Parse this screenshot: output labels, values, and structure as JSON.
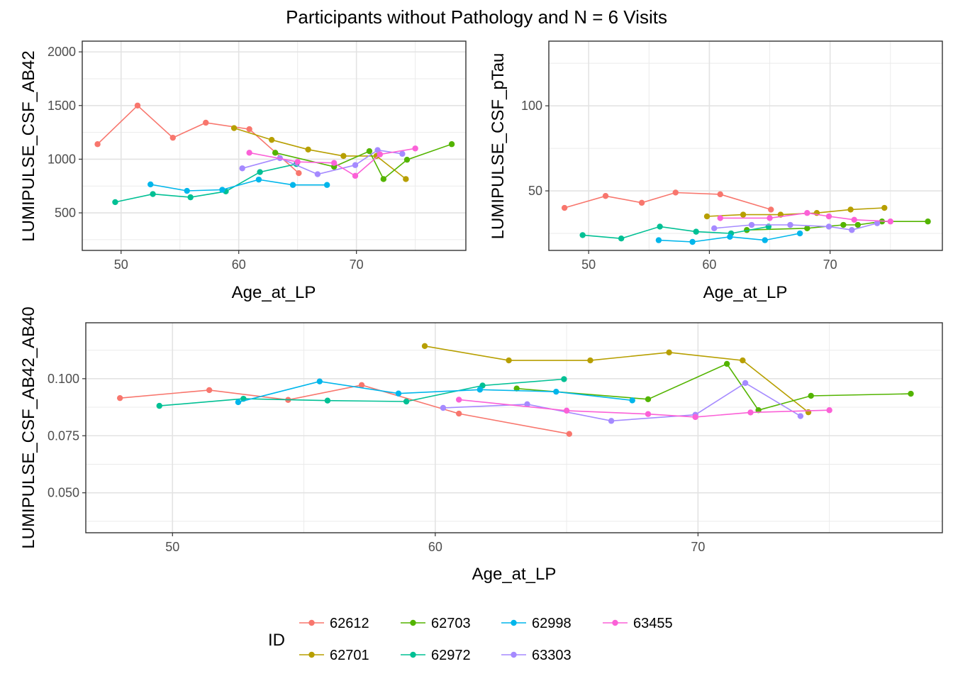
{
  "figure_title": "Participants without Pathology and N = 6 Visits",
  "colors": {
    "62612": "#F8766D",
    "62701": "#B79F00",
    "62703": "#53B400",
    "62972": "#00C094",
    "62998": "#00B6EB",
    "63303": "#A58AFF",
    "63455": "#FB61D7"
  },
  "legend": {
    "title": "ID",
    "entries": [
      "62612",
      "62703",
      "62998",
      "63455",
      "62701",
      "62972",
      "63303"
    ]
  },
  "chart_data": [
    {
      "type": "line",
      "xlabel": "Age_at_LP",
      "ylabel": "LUMIPULSE_CSF_AB42",
      "xlim": [
        46.7,
        79.3
      ],
      "ylim": [
        150,
        2100
      ],
      "xticks": [
        50,
        60,
        70
      ],
      "yticks": [
        500,
        1000,
        1500,
        2000
      ],
      "ytick_labels": [
        "500",
        "1000",
        "1500",
        "2000"
      ],
      "grid": true,
      "series": [
        {
          "name": "62612",
          "x": [
            48.0,
            51.4,
            54.4,
            57.2,
            60.9,
            65.1
          ],
          "y": [
            1140,
            1500,
            1200,
            1340,
            1280,
            870
          ]
        },
        {
          "name": "62701",
          "x": [
            59.6,
            62.8,
            65.9,
            68.9,
            71.7,
            74.2
          ],
          "y": [
            1290,
            1180,
            1090,
            1030,
            1030,
            815
          ]
        },
        {
          "name": "62703",
          "x": [
            63.1,
            68.1,
            71.1,
            72.3,
            74.3,
            78.1
          ],
          "y": [
            1060,
            930,
            1075,
            815,
            995,
            1140
          ]
        },
        {
          "name": "62972",
          "x": [
            49.5,
            52.7,
            55.9,
            58.9,
            61.8,
            64.9
          ],
          "y": [
            600,
            675,
            645,
            700,
            880,
            955
          ]
        },
        {
          "name": "62998",
          "x": [
            52.5,
            55.6,
            58.6,
            61.7,
            64.6,
            67.5
          ],
          "y": [
            765,
            705,
            715,
            810,
            760,
            760
          ]
        },
        {
          "name": "63303",
          "x": [
            60.3,
            63.5,
            66.7,
            69.9,
            71.8,
            73.9
          ],
          "y": [
            915,
            1010,
            860,
            945,
            1085,
            1050
          ]
        },
        {
          "name": "63455",
          "x": [
            60.9,
            65.0,
            68.1,
            69.9,
            72.0,
            75.0
          ],
          "y": [
            1060,
            975,
            965,
            845,
            1045,
            1100
          ]
        }
      ]
    },
    {
      "type": "line",
      "xlabel": "Age_at_LP",
      "ylabel": "LUMIPULSE_CSF_pTau",
      "xlim": [
        46.7,
        79.3
      ],
      "ylim": [
        15,
        138
      ],
      "xticks": [
        50,
        60,
        70
      ],
      "yticks": [
        50,
        100
      ],
      "ytick_labels": [
        "50",
        "100"
      ],
      "grid": true,
      "series": [
        {
          "name": "62612",
          "x": [
            48.0,
            51.4,
            54.4,
            57.2,
            60.9,
            65.1
          ],
          "y": [
            40,
            47,
            43,
            49,
            48,
            39
          ]
        },
        {
          "name": "62701",
          "x": [
            59.8,
            62.8,
            65.9,
            68.9,
            71.7,
            74.5
          ],
          "y": [
            35,
            36,
            36,
            37,
            39,
            40
          ]
        },
        {
          "name": "62703",
          "x": [
            63.1,
            68.1,
            71.1,
            72.3,
            74.3,
            78.1
          ],
          "y": [
            27,
            28,
            30,
            30,
            32,
            32
          ]
        },
        {
          "name": "62972",
          "x": [
            49.5,
            52.7,
            55.9,
            58.9,
            61.8,
            64.9
          ],
          "y": [
            24,
            22,
            29,
            26,
            25,
            29
          ]
        },
        {
          "name": "62998",
          "x": [
            55.8,
            58.6,
            61.7,
            64.6,
            67.5
          ],
          "y": [
            21,
            20,
            23,
            21,
            25
          ]
        },
        {
          "name": "63303",
          "x": [
            60.4,
            63.5,
            66.7,
            69.9,
            71.8,
            73.9
          ],
          "y": [
            28,
            30,
            30,
            29,
            27,
            31
          ]
        },
        {
          "name": "63455",
          "x": [
            60.9,
            65.0,
            68.1,
            69.9,
            72.0,
            75.0
          ],
          "y": [
            34,
            34,
            37,
            35,
            33,
            32
          ]
        }
      ]
    },
    {
      "type": "line",
      "xlabel": "Age_at_LP",
      "ylabel": "LUMIPULSE_CSF_AB42_AB40",
      "xlim": [
        46.7,
        79.3
      ],
      "ylim": [
        0.0325,
        0.1245
      ],
      "xticks": [
        50,
        60,
        70
      ],
      "yticks": [
        0.05,
        0.075,
        0.1
      ],
      "ytick_labels": [
        "0.050",
        "0.075",
        "0.100"
      ],
      "grid": true,
      "series": [
        {
          "name": "62612",
          "x": [
            48.0,
            51.4,
            54.4,
            57.2,
            60.9,
            65.1
          ],
          "y": [
            0.0915,
            0.095,
            0.0907,
            0.0972,
            0.0847,
            0.0758
          ]
        },
        {
          "name": "62701",
          "x": [
            59.6,
            62.8,
            65.9,
            68.9,
            71.7,
            74.2
          ],
          "y": [
            0.1143,
            0.108,
            0.108,
            0.1115,
            0.108,
            0.0853
          ]
        },
        {
          "name": "62703",
          "x": [
            63.1,
            68.1,
            71.1,
            72.3,
            74.3,
            78.1
          ],
          "y": [
            0.0957,
            0.091,
            0.1065,
            0.0862,
            0.0925,
            0.0934
          ]
        },
        {
          "name": "62972",
          "x": [
            49.5,
            52.7,
            55.9,
            58.9,
            61.8,
            64.9
          ],
          "y": [
            0.0881,
            0.0912,
            0.0904,
            0.09,
            0.097,
            0.0998
          ]
        },
        {
          "name": "62998",
          "x": [
            52.5,
            55.6,
            58.6,
            61.7,
            64.6,
            67.5
          ],
          "y": [
            0.0897,
            0.0988,
            0.0935,
            0.0952,
            0.0943,
            0.0905
          ]
        },
        {
          "name": "63303",
          "x": [
            60.3,
            63.5,
            66.7,
            69.9,
            71.8,
            73.9
          ],
          "y": [
            0.0872,
            0.0888,
            0.0815,
            0.0842,
            0.0981,
            0.0836
          ]
        },
        {
          "name": "63455",
          "x": [
            60.9,
            65.0,
            68.1,
            69.9,
            72.0,
            75.0
          ],
          "y": [
            0.0908,
            0.086,
            0.0845,
            0.0832,
            0.0852,
            0.0862
          ]
        }
      ]
    }
  ]
}
